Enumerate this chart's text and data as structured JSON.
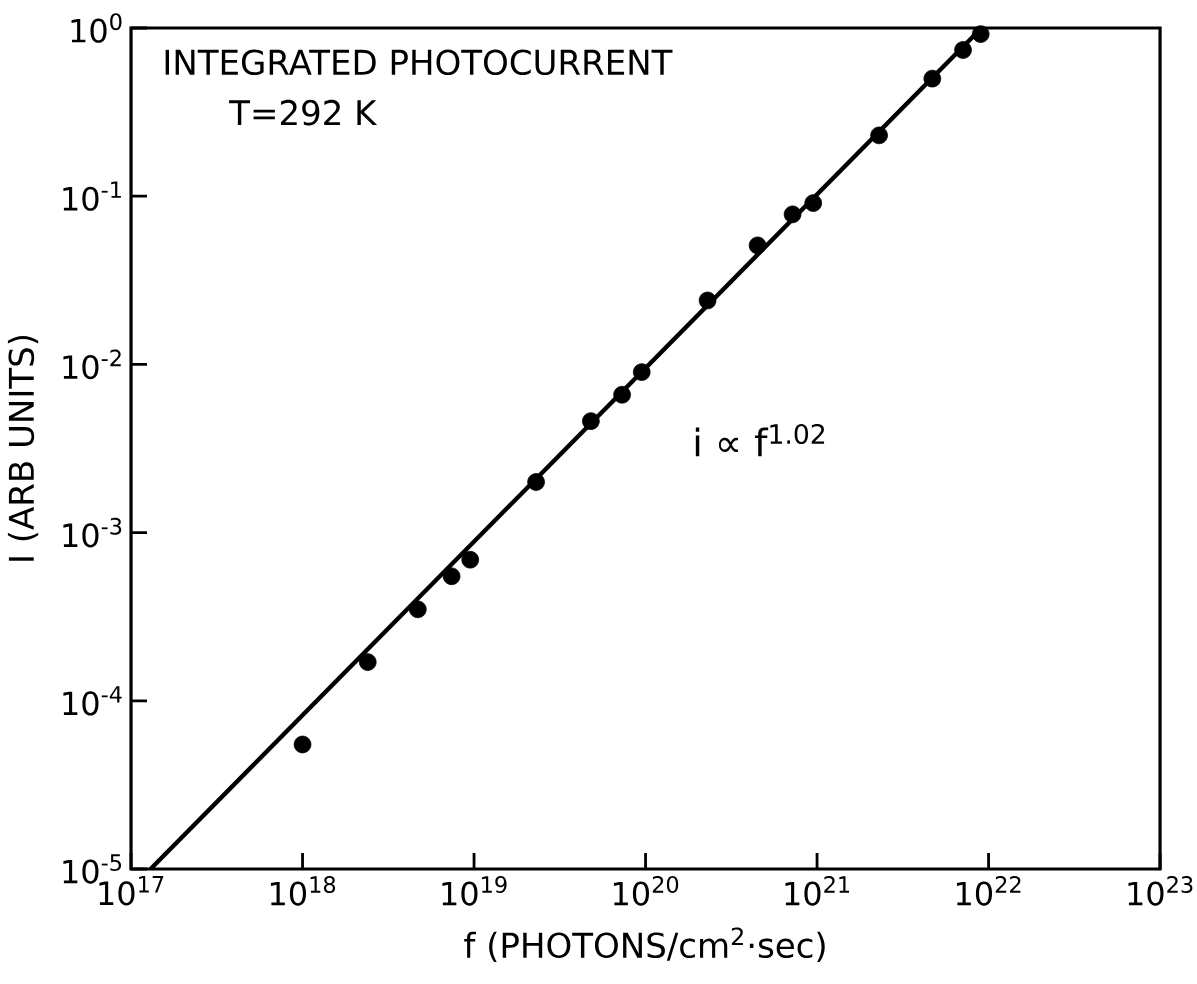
{
  "chart_data": {
    "type": "scatter",
    "xlabel": "f (PHOTONS/cm$^{2}$·sec)",
    "ylabel": "I (ARB UNITS)",
    "log": "xy",
    "grid": false,
    "xlim": [
      1e+17,
      1e+23
    ],
    "ylim": [
      1e-05,
      1
    ],
    "xticks": [
      {
        "value": 1e+17,
        "label": "10$^{17}$"
      },
      {
        "value": 1e+18,
        "label": "10$^{18}$"
      },
      {
        "value": 1e+19,
        "label": "10$^{19}$"
      },
      {
        "value": 1e+20,
        "label": "10$^{20}$"
      },
      {
        "value": 1e+21,
        "label": "10$^{21}$"
      },
      {
        "value": 1e+22,
        "label": "10$^{22}$"
      },
      {
        "value": 1e+23,
        "label": "10$^{23}$"
      }
    ],
    "yticks": [
      {
        "value": 1e-05,
        "label": "10$^{-5}$"
      },
      {
        "value": 0.0001,
        "label": "10$^{-4}$"
      },
      {
        "value": 0.001,
        "label": "10$^{-3}$"
      },
      {
        "value": 0.01,
        "label": "10$^{-2}$"
      },
      {
        "value": 0.1,
        "label": "10$^{-1}$"
      },
      {
        "value": 1,
        "label": "10$^{0}$"
      }
    ],
    "series": [
      {
        "color": "#000000",
        "marker": "circle",
        "x": [
          1e+18,
          2.4e+18,
          4.7e+18,
          7.4e+18,
          9.5e+18,
          2.3e+19,
          4.8e+19,
          7.3e+19,
          9.5e+19,
          2.3e+20,
          4.5e+20,
          7.2e+20,
          9.5e+20,
          2.3e+21,
          4.7e+21,
          7.1e+21,
          9e+21
        ],
        "values": [
          5.5e-05,
          0.00017,
          0.00035,
          0.00055,
          0.00069,
          0.002,
          0.0046,
          0.0066,
          0.009,
          0.024,
          0.051,
          0.078,
          0.091,
          0.23,
          0.5,
          0.74,
          0.92
        ]
      },
      {
        "type": "line",
        "color": "#000000",
        "marker": "none",
        "x": [
          1.3e+17,
          9.1e+21
        ],
        "values": [
          1e-05,
          1
        ]
      }
    ],
    "annotations": [
      "INTEGRATED PHOTOCURRENT",
      "T=292 K",
      "i ∝ f$^{1.02}$"
    ]
  }
}
